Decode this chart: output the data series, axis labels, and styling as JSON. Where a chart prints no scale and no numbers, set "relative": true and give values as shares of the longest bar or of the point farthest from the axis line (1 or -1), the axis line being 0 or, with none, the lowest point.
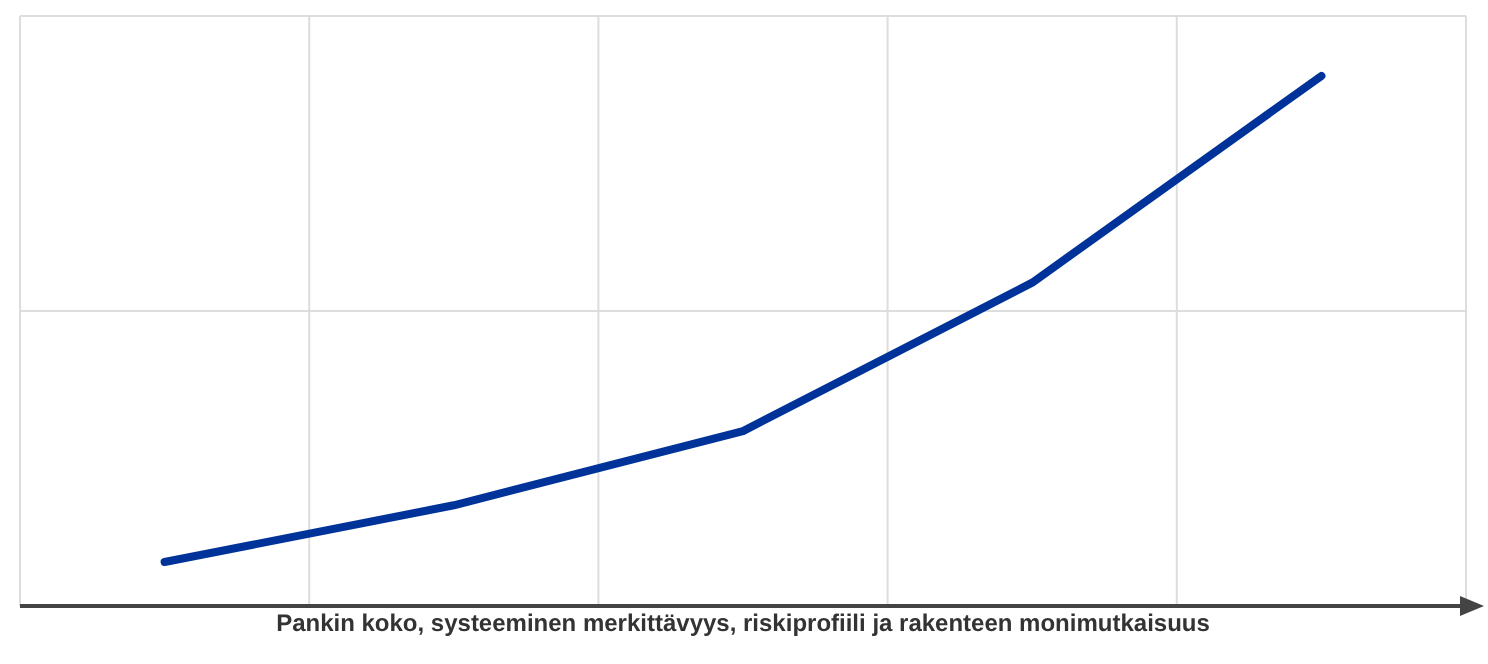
{
  "chart_data": {
    "type": "line",
    "relative": true,
    "xlabel": "Pankin koko, systeeminen merkittävyys, riskiprofiili ja rakenteen monimutkaisuus",
    "categories": [
      null,
      null,
      null,
      null,
      null
    ],
    "series": [
      {
        "color": "#003399",
        "values": [
          0.083,
          0.19,
          0.33,
          0.61,
          1
        ]
      }
    ],
    "grid": true,
    "marker": "none",
    "line_style": "solid"
  }
}
